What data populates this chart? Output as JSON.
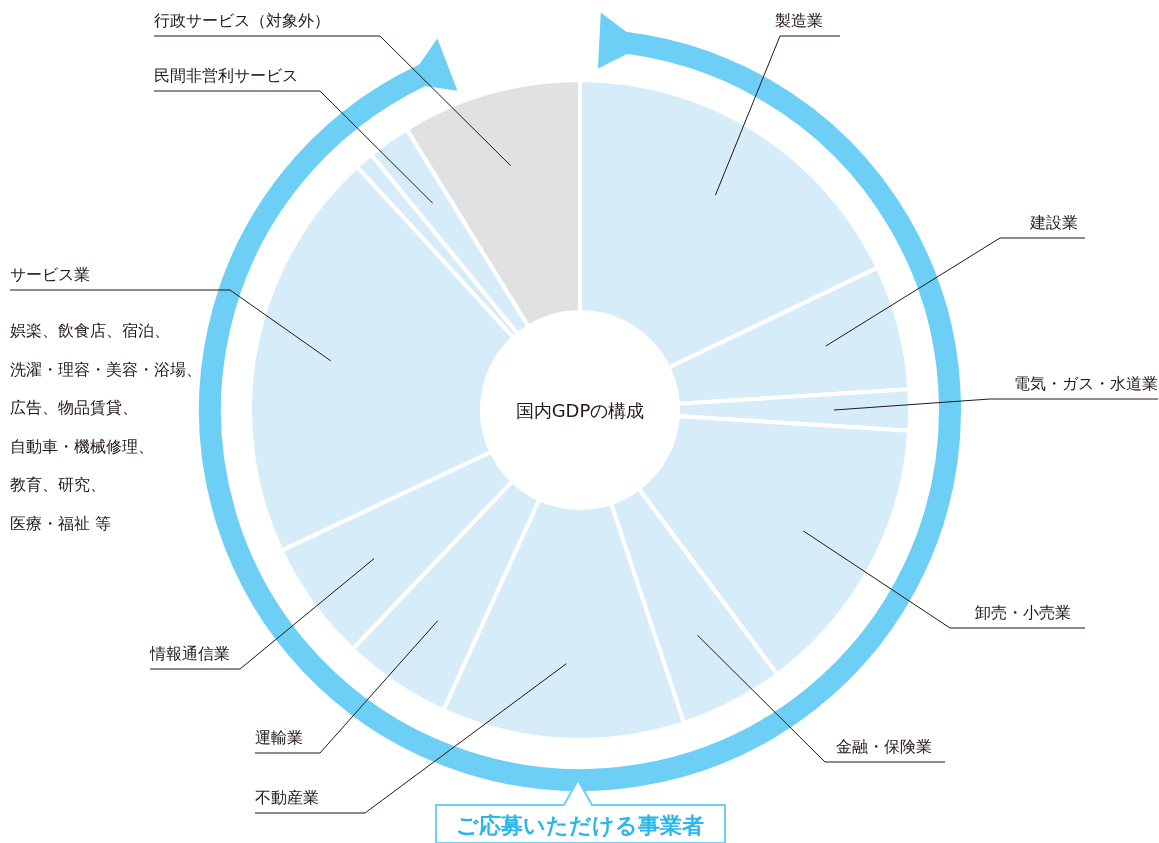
{
  "chart_data": {
    "type": "donut",
    "title": "国内GDPの構成",
    "categories": [
      "製造業",
      "建設業",
      "電気・ガス・水道業",
      "卸売・小売業",
      "金融・保険業",
      "不動産業",
      "運輸業",
      "情報通信業",
      "サービス業",
      null,
      "民間非営利サービス",
      "行政サービス（対象外）"
    ],
    "values": [
      17.9,
      6.1,
      2.0,
      13.8,
      5.1,
      11.9,
      5.3,
      5.9,
      20.2,
      0.9,
      2.1,
      8.8
    ],
    "colors": [
      "#d6edf9",
      "#d6edf9",
      "#d6edf9",
      "#d6edf9",
      "#d6edf9",
      "#d6edf9",
      "#d6edf9",
      "#d6edf9",
      "#d6edf9",
      "#d6edf9",
      "#d6edf9",
      "#e0e1e3"
    ],
    "annotations": [
      "娯楽、飲食店、宿泊、",
      "洗濯・理容・美容・浴場、",
      "広告、物品賃貸、",
      "自動車・機械修理、",
      "教育、研究、",
      "医療・福祉 等",
      "ご応募いただける事業者"
    ]
  }
}
